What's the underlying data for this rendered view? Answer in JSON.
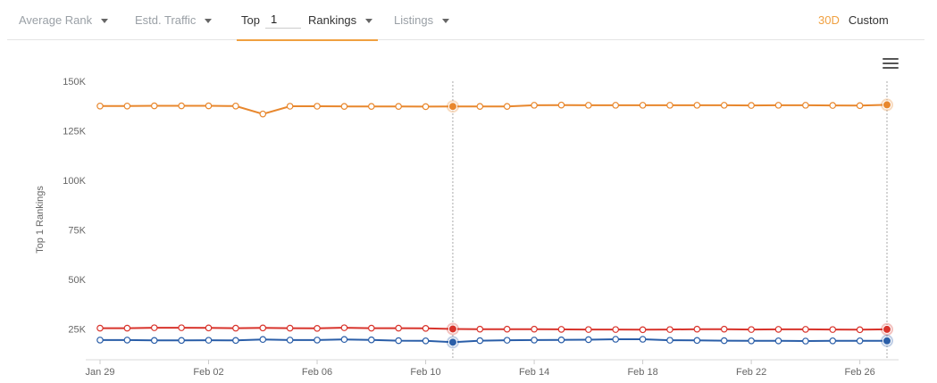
{
  "tabs": {
    "average_rank": "Average Rank",
    "estd_traffic": "Estd. Traffic",
    "top_label": "Top",
    "top_value": "1",
    "rankings": "Rankings",
    "listings": "Listings"
  },
  "range": {
    "r30": "30D",
    "custom": "Custom"
  },
  "colors": {
    "orange": "#e8872d",
    "red": "#d8342c",
    "blue": "#2a5ea8",
    "accent": "#f0a040"
  },
  "chart_data": {
    "type": "line",
    "ylabel": "Top 1 Rankings",
    "ylim": [
      10000,
      150000
    ],
    "yticks": [
      25000,
      50000,
      75000,
      100000,
      125000,
      150000
    ],
    "ytick_labels": [
      "25K",
      "50K",
      "75K",
      "100K",
      "125K",
      "150K"
    ],
    "x_start": "Jan 29",
    "xtick_labels": [
      "Jan 29",
      "Feb 02",
      "Feb 06",
      "Feb 10",
      "Feb 14",
      "Feb 18",
      "Feb 22",
      "Feb 26"
    ],
    "xtick_index": [
      0,
      4,
      8,
      12,
      16,
      20,
      24,
      28
    ],
    "highlight_index": [
      13,
      29
    ],
    "series": [
      {
        "color": "#e8872d",
        "values": [
          137500,
          137500,
          137600,
          137600,
          137600,
          137500,
          133500,
          137400,
          137400,
          137300,
          137300,
          137300,
          137200,
          137300,
          137300,
          137300,
          137900,
          138000,
          137900,
          137900,
          137900,
          137900,
          137900,
          137900,
          137800,
          137900,
          137900,
          137800,
          137700,
          138100
        ]
      },
      {
        "color": "#d8342c",
        "values": [
          25500,
          25500,
          25700,
          25700,
          25600,
          25500,
          25600,
          25500,
          25400,
          25700,
          25500,
          25500,
          25400,
          25100,
          25000,
          25000,
          25000,
          24900,
          24800,
          24800,
          24700,
          24800,
          25000,
          25000,
          24800,
          24900,
          24900,
          24800,
          24700,
          24900
        ]
      },
      {
        "color": "#2a5ea8",
        "values": [
          19500,
          19500,
          19300,
          19300,
          19400,
          19300,
          19800,
          19500,
          19500,
          19800,
          19600,
          19200,
          19100,
          18400,
          19200,
          19400,
          19500,
          19600,
          19700,
          19900,
          19900,
          19400,
          19300,
          19200,
          19100,
          19100,
          19000,
          19100,
          19100,
          19100
        ]
      }
    ]
  }
}
